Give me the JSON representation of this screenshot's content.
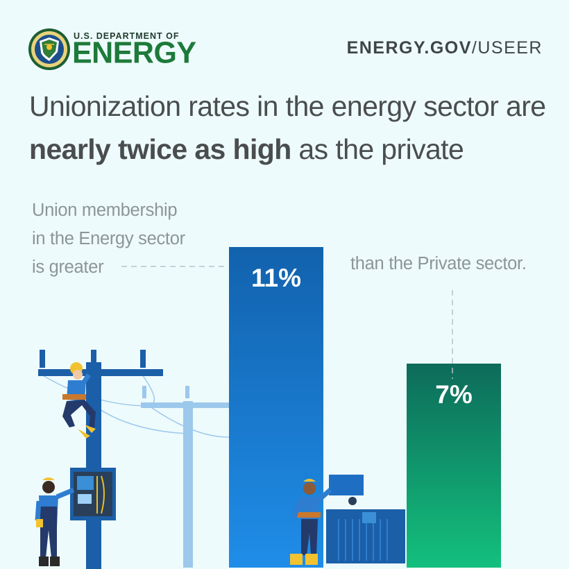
{
  "header": {
    "agency_top": "U.S. DEPARTMENT OF",
    "agency_main": "ENERGY",
    "site_url_bold": "ENERGY.GOV",
    "site_url_rest": "/USEER",
    "seal_icon": "doe-seal-icon"
  },
  "headline": {
    "line1": "Unionization rates in the energy sector are",
    "bold": "nearly twice as high",
    "line2_rest": " as the private"
  },
  "callouts": {
    "energy_lines": [
      "Union membership",
      "in the Energy sector",
      "is greater"
    ],
    "private": "than the Private sector."
  },
  "colors": {
    "background": "#eefbfc",
    "energy_bar_top": "#1262ad",
    "energy_bar_bottom": "#1f8de8",
    "private_bar_top": "#0d6b5a",
    "private_bar_bottom": "#13c07d",
    "agency_green": "#1d7a3a"
  },
  "chart_data": {
    "type": "bar",
    "categories": [
      "Energy sector",
      "Private sector"
    ],
    "values": [
      11,
      7
    ],
    "value_labels": [
      "11%",
      "7%"
    ],
    "unit": "%",
    "title": "",
    "xlabel": "",
    "ylabel": "",
    "grid": false,
    "legend": "none"
  }
}
